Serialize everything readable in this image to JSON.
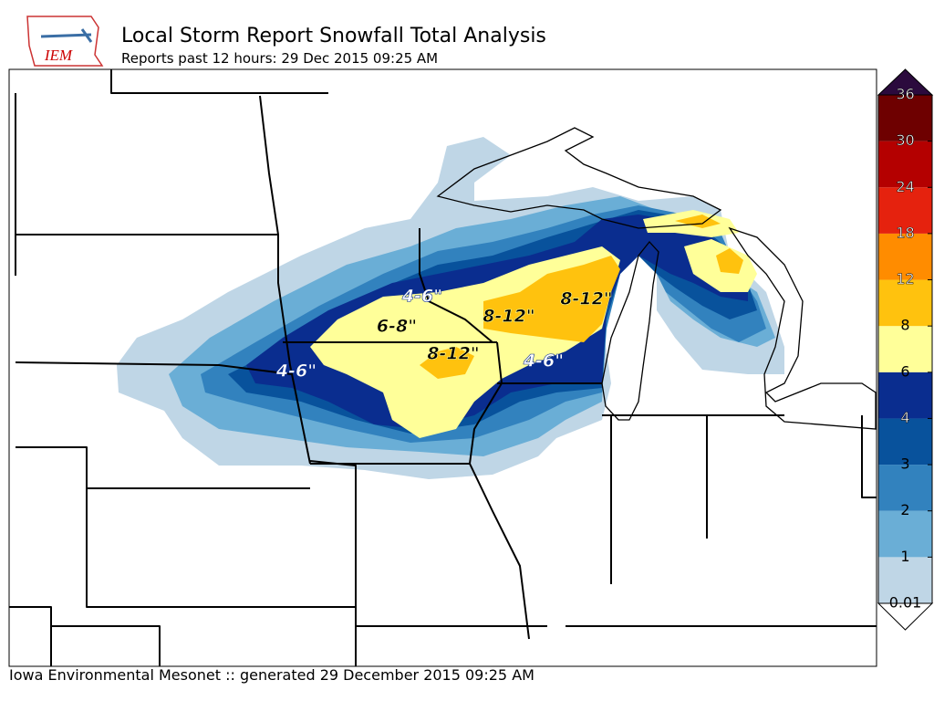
{
  "header": {
    "logo_text": "IEM",
    "title": "Local Storm Report Snowfall Total Analysis",
    "subtitle": "Reports past 12 hours: 29 Dec 2015 09:25 AM"
  },
  "legend": {
    "levels": [
      0.01,
      1,
      2,
      3,
      4,
      6,
      8,
      12,
      18,
      24,
      30,
      36
    ],
    "colors": [
      "#bfd6e6",
      "#6aaed6",
      "#3282be",
      "#08529c",
      "#0a2d8f",
      "#ffff99",
      "#ffc20e",
      "#ff8c00",
      "#e5220e",
      "#b40000",
      "#6e0000"
    ],
    "over_color": "#2b0a3d",
    "under_color": "#ffffff"
  },
  "annotations": [
    {
      "text": "4-6\"",
      "color": "#ffffff"
    },
    {
      "text": "6-8\"",
      "color": "#000000"
    },
    {
      "text": "8-12\"",
      "color": "#000000"
    },
    {
      "text": "8-12\"",
      "color": "#000000"
    },
    {
      "text": "8-12\"",
      "color": "#000000"
    },
    {
      "text": "4-6\"",
      "color": "#ffffff"
    },
    {
      "text": "4-6\"",
      "color": "#ffffff"
    }
  ],
  "footer": "Iowa Environmental Mesonet :: generated 29 December 2015 09:25 AM"
}
